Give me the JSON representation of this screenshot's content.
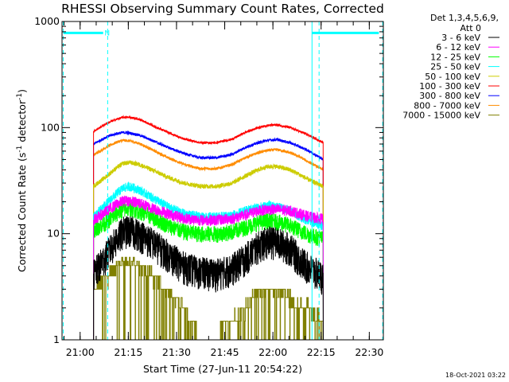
{
  "chart_data": {
    "type": "line",
    "title": "RHESSI Observing Summary Count Rates, Corrected",
    "xlabel": "Start Time (27-Jun-11 20:54:22)",
    "ylabel_main": "Corrected Count Rate (s",
    "ylabel_sup1": "-1",
    "ylabel_mid": " detector",
    "ylabel_sup2": "-1",
    "ylabel_end": ")",
    "y_scale": "log",
    "ylim": [
      1,
      1000
    ],
    "xlim_minutes_after_2054_22": [
      0,
      100
    ],
    "x_ticks": [
      {
        "label": "21:00",
        "minute": 5.63
      },
      {
        "label": "21:15",
        "minute": 20.63
      },
      {
        "label": "21:30",
        "minute": 35.63
      },
      {
        "label": "21:45",
        "minute": 50.63
      },
      {
        "label": "22:00",
        "minute": 65.63
      },
      {
        "label": "22:15",
        "minute": 80.63
      },
      {
        "label": "22:30",
        "minute": 95.63
      }
    ],
    "y_ticks": [
      {
        "label": "1",
        "value": 1
      },
      {
        "label": "10",
        "value": 10
      },
      {
        "label": "100",
        "value": 100
      },
      {
        "label": "1000",
        "value": 1000
      }
    ],
    "legend_header": [
      "Det 1,3,4,5,6,9,",
      "Att 0"
    ],
    "legend_position": "right",
    "data_window_minutes": [
      9.8,
      81.3
    ],
    "profile_minutes": [
      9.8,
      14,
      17,
      19,
      21,
      24,
      28,
      33,
      38,
      43,
      48,
      53,
      57,
      61,
      64,
      67,
      71,
      74,
      77,
      81.3
    ],
    "series": [
      {
        "name": "3 - 6 keV",
        "color": "#000000",
        "noise": 0.35,
        "stepped": false,
        "values": [
          4.2,
          6.5,
          9.0,
          10.8,
          11.0,
          10.2,
          8.5,
          6.5,
          5.0,
          4.5,
          4.3,
          4.8,
          6.0,
          7.8,
          8.8,
          8.5,
          7.5,
          5.8,
          4.8,
          4.0
        ]
      },
      {
        "name": "6 - 12 keV",
        "color": "#ff00ff",
        "noise": 0.12,
        "stepped": false,
        "values": [
          13.5,
          16.5,
          19.0,
          20.5,
          20.5,
          19.5,
          17.5,
          15.5,
          14.0,
          13.5,
          13.5,
          14.0,
          15.0,
          16.5,
          17.0,
          17.0,
          16.5,
          15.5,
          14.5,
          13.8
        ]
      },
      {
        "name": "12 - 25 keV",
        "color": "#00ff00",
        "noise": 0.18,
        "stepped": false,
        "values": [
          11.0,
          13.0,
          15.5,
          17.0,
          17.5,
          16.5,
          14.5,
          12.0,
          10.5,
          10.0,
          10.0,
          10.5,
          11.5,
          12.8,
          13.3,
          13.0,
          12.0,
          10.8,
          9.8,
          9.0
        ]
      },
      {
        "name": "25 - 50 keV",
        "color": "#00ffff",
        "noise": 0.1,
        "stepped": false,
        "values": [
          14.5,
          19.5,
          24.0,
          27.0,
          28.0,
          26.0,
          22.0,
          18.0,
          15.5,
          14.5,
          14.5,
          15.0,
          16.5,
          17.8,
          18.5,
          18.0,
          16.5,
          14.5,
          13.0,
          12.0
        ]
      },
      {
        "name": "50 - 100 keV",
        "color": "#cccc00",
        "noise": 0.05,
        "stepped": false,
        "values": [
          28.0,
          35.0,
          42.0,
          46.0,
          47.0,
          45.0,
          40.0,
          34.0,
          30.0,
          28.0,
          28.0,
          30.0,
          35.0,
          40.0,
          43.0,
          43.0,
          40.0,
          36.0,
          32.0,
          28.0
        ]
      },
      {
        "name": "100 - 300 keV",
        "color": "#ff0000",
        "noise": 0.025,
        "stepped": false,
        "values": [
          92.0,
          110.0,
          120.0,
          125.0,
          125.0,
          120.0,
          105.0,
          90.0,
          78.0,
          72.0,
          72.0,
          78.0,
          90.0,
          100.0,
          105.0,
          106.0,
          100.0,
          92.0,
          84.0,
          72.0
        ]
      },
      {
        "name": "300 - 800 keV",
        "color": "#0000ff",
        "noise": 0.03,
        "stepped": false,
        "values": [
          70.0,
          82.0,
          88.0,
          90.0,
          89.0,
          85.0,
          76.0,
          65.0,
          57.0,
          52.0,
          52.0,
          56.0,
          65.0,
          72.0,
          76.0,
          77.0,
          72.0,
          66.0,
          60.0,
          50.0
        ]
      },
      {
        "name": "800 - 7000 keV",
        "color": "#ff8c00",
        "noise": 0.03,
        "stepped": false,
        "values": [
          55.0,
          66.0,
          73.0,
          76.0,
          75.0,
          71.0,
          62.0,
          52.0,
          45.0,
          41.0,
          41.0,
          45.0,
          52.0,
          58.0,
          61.0,
          62.0,
          58.0,
          53.0,
          47.0,
          40.0
        ]
      },
      {
        "name": "7000 - 15000 keV",
        "color": "#808000",
        "noise": 0.0,
        "stepped": true,
        "values": [
          3.0,
          4.0,
          5.0,
          5.5,
          5.5,
          5.0,
          4.0,
          3.0,
          2.0,
          1.0,
          1.0,
          1.5,
          2.0,
          3.0,
          3.0,
          3.0,
          2.5,
          2.0,
          2.0,
          1.5
        ]
      }
    ],
    "markers": {
      "line_color": "#00ffff",
      "dashed_minutes": [
        0.4,
        14.2,
        80.0,
        99.8
      ],
      "solid_minutes": [
        77.8
      ],
      "bar_spans": [
        [
          0.4,
          12.8
        ],
        [
          77.8,
          98.6
        ]
      ],
      "bar_value": 780,
      "bar_label": "N",
      "bar_label_minute": 13.2
    },
    "grid": false
  },
  "footer_timestamp": "18-Oct-2021 03:22"
}
